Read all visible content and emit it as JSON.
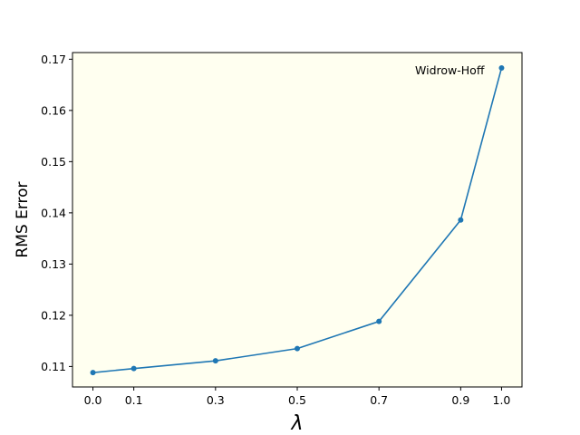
{
  "chart_data": {
    "type": "line",
    "xlabel": "λ",
    "ylabel": "RMS Error",
    "x": [
      0.0,
      0.1,
      0.3,
      0.5,
      0.7,
      0.9,
      1.0
    ],
    "x_tick_labels": [
      "0.0",
      "0.1",
      "0.3",
      "0.5",
      "0.7",
      "0.9",
      "1.0"
    ],
    "series": [
      {
        "values": [
          0.1088,
          0.1096,
          0.1111,
          0.1135,
          0.1188,
          0.1386,
          0.1683
        ]
      }
    ],
    "y_ticks": [
      0.11,
      0.12,
      0.13,
      0.14,
      0.15,
      0.16,
      0.17
    ],
    "y_tick_labels": [
      "0.11",
      "0.12",
      "0.13",
      "0.14",
      "0.15",
      "0.16",
      "0.17"
    ],
    "xlim": [
      -0.05,
      1.05
    ],
    "ylim": [
      0.106,
      0.1713
    ],
    "grid": false,
    "annotations": [
      {
        "text": "Widrow-Hoff",
        "x": 1.0,
        "y": 0.1683
      }
    ],
    "colors": {
      "plot_background": "#fffff0",
      "line": "#1f77b4",
      "marker": "#1f77b4"
    }
  }
}
